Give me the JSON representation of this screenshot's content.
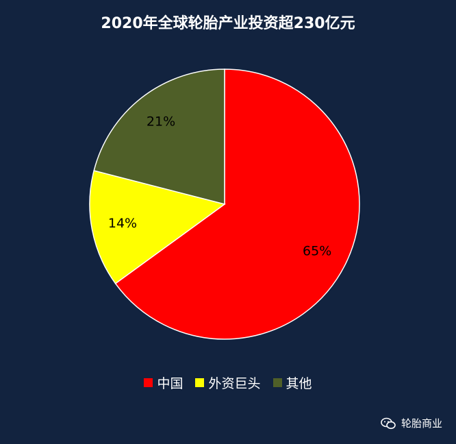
{
  "chart_data": {
    "type": "pie",
    "title": "2020年全球轮胎产业投资超230亿元",
    "categories": [
      "中国",
      "外资巨头",
      "其他"
    ],
    "values": [
      65,
      14,
      21
    ],
    "labels": [
      "65%",
      "14%",
      "21%"
    ],
    "colors": [
      "#ff0000",
      "#ffff00",
      "#4f5f28"
    ],
    "legend_position": "bottom"
  },
  "watermark": {
    "text": "轮胎商业",
    "icon": "wechat-icon"
  }
}
